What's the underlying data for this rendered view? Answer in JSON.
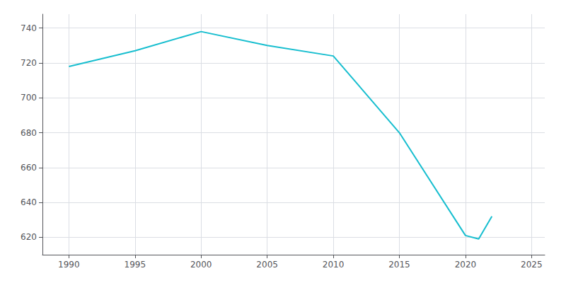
{
  "chart_data": {
    "type": "line",
    "x": [
      1990,
      1995,
      2000,
      2005,
      2010,
      2015,
      2020,
      2021,
      2022
    ],
    "values": [
      718,
      727,
      738,
      730,
      724,
      680,
      621,
      619,
      632
    ],
    "color": "#17becf",
    "xlim": [
      1988,
      2026
    ],
    "xticks": [
      1990,
      1995,
      2000,
      2005,
      2010,
      2015,
      2020,
      2025
    ],
    "ylim": [
      610,
      748
    ],
    "yticks": [
      620,
      640,
      660,
      680,
      700,
      720,
      740
    ],
    "grid": true
  }
}
